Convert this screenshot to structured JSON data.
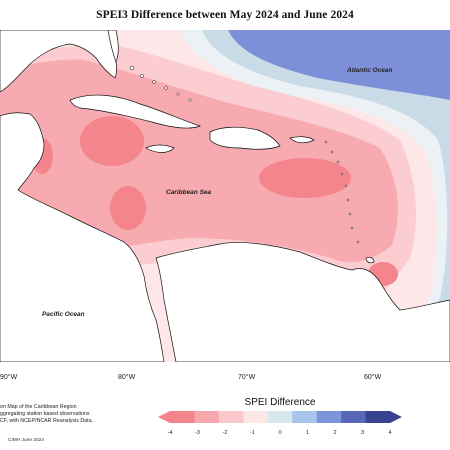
{
  "title": "SPEI3 Difference between May 2024 and June 2024",
  "labels": {
    "atlantic": "Atlantic Ocean",
    "caribbean": "Caribbean Sea",
    "pacific": "Pacific Ocean"
  },
  "axis": {
    "ticks": [
      "90°W",
      "80°W",
      "70°W",
      "60°W"
    ]
  },
  "credit": {
    "lines": [
      "on Map of the Caribbean Region",
      "ggregating station based observations",
      "CF, with NCEP/NCAR Reanalysis Data."
    ],
    "org": "CIMH June 2024"
  },
  "legend": {
    "title": "SPEI Difference",
    "ticks": [
      "-4",
      "-3",
      "-2",
      "-1",
      "0",
      "1",
      "2",
      "3",
      "4"
    ],
    "colors": [
      "#f3848c",
      "#f7a8ae",
      "#fbc9cc",
      "#fde6e6",
      "#d5e8ee",
      "#a9c5ec",
      "#7c95d8",
      "#5867b8",
      "#3a4390"
    ]
  }
}
